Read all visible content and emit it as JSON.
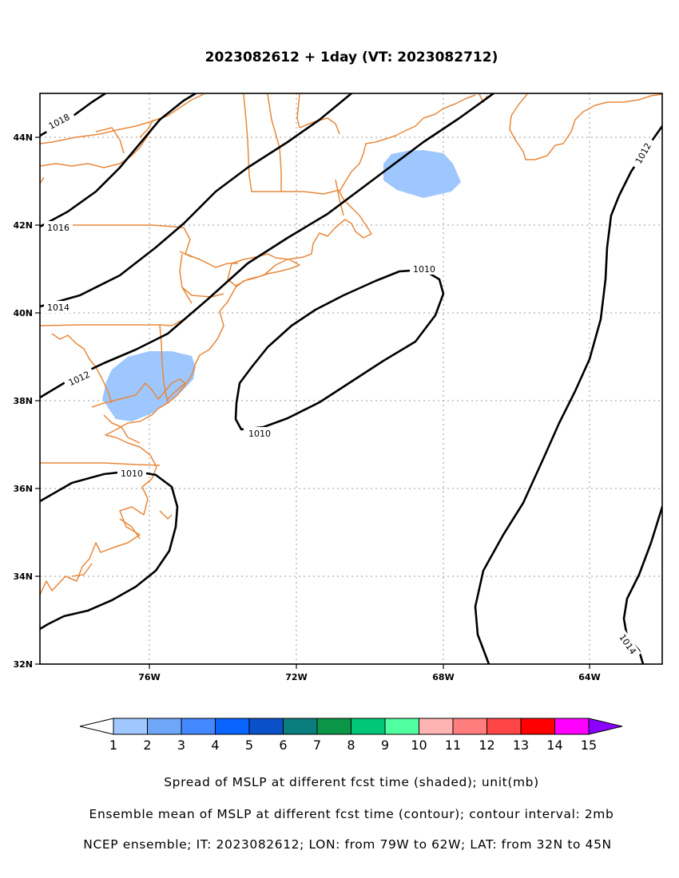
{
  "title": "2023082612 + 1day (VT: 2023082712)",
  "map": {
    "lon_range": [
      -79,
      -62
    ],
    "lat_range": [
      32,
      45
    ],
    "x_ticks": [
      {
        "lon": -76,
        "label": "76W"
      },
      {
        "lon": -72,
        "label": "72W"
      },
      {
        "lon": -68,
        "label": "68W"
      },
      {
        "lon": -64,
        "label": "64W"
      }
    ],
    "y_ticks": [
      {
        "lat": 32,
        "label": "32N"
      },
      {
        "lat": 34,
        "label": "34N"
      },
      {
        "lat": 36,
        "label": "36N"
      },
      {
        "lat": 38,
        "label": "38N"
      },
      {
        "lat": 40,
        "label": "40N"
      },
      {
        "lat": 42,
        "label": "42N"
      },
      {
        "lat": 44,
        "label": "44N"
      }
    ],
    "grid": "dotted",
    "coast_color": "#e8883a",
    "contour_color": "#000000",
    "shade_color": "#9ec6ff",
    "contours": [
      {
        "label": "1018"
      },
      {
        "label": "1016"
      },
      {
        "label": "1014"
      },
      {
        "label": "1012"
      },
      {
        "label": "1010"
      },
      {
        "label": "1010"
      },
      {
        "label": "1010"
      },
      {
        "label": "1012"
      },
      {
        "label": "1014"
      }
    ]
  },
  "colorbar": {
    "labels": [
      "1",
      "2",
      "3",
      "4",
      "5",
      "6",
      "7",
      "8",
      "9",
      "10",
      "11",
      "12",
      "13",
      "14",
      "15"
    ],
    "colors": [
      "#a0c8ff",
      "#70a6f8",
      "#4488ff",
      "#0a64ff",
      "#0a50c8",
      "#0a7d7d",
      "#0a9646",
      "#00c878",
      "#50ffa0",
      "#ffb4b4",
      "#ff7d7d",
      "#ff4646",
      "#ff0000",
      "#ff00ff",
      "#8c00ff"
    ],
    "under_color": "#ffffff",
    "over_color": "#8c00ff"
  },
  "captions": [
    "Spread of MSLP at different fcst time (shaded); unit(mb)",
    "Ensemble mean of MSLP at different fcst time (contour); contour interval: 2mb",
    "NCEP ensemble; IT: 2023082612; LON: from 79W to 62W; LAT: from 32N to 45N"
  ]
}
